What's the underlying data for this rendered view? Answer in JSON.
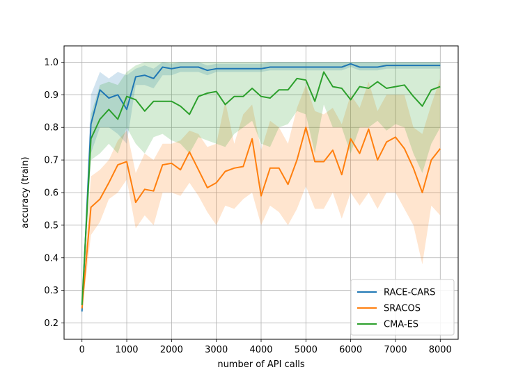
{
  "chart_data": {
    "type": "line",
    "title": "",
    "xlabel": "number of API calls",
    "ylabel": "accuracy (train)",
    "xlim": [
      -400,
      8400
    ],
    "ylim": [
      0.15,
      1.05
    ],
    "xticks": [
      0,
      1000,
      2000,
      3000,
      4000,
      5000,
      6000,
      7000,
      8000
    ],
    "yticks": [
      0.2,
      0.3,
      0.4,
      0.5,
      0.6,
      0.7,
      0.8,
      0.9,
      1.0
    ],
    "xtick_labels": [
      "0",
      "1000",
      "2000",
      "3000",
      "4000",
      "5000",
      "6000",
      "7000",
      "8000"
    ],
    "ytick_labels": [
      "0.2",
      "0.3",
      "0.4",
      "0.5",
      "0.6",
      "0.7",
      "0.8",
      "0.9",
      "1.0"
    ],
    "grid": true,
    "legend_position": "lower-right",
    "x": [
      0,
      200,
      400,
      600,
      800,
      1000,
      1200,
      1400,
      1600,
      1800,
      2000,
      2200,
      2400,
      2600,
      2800,
      3000,
      3200,
      3400,
      3600,
      3800,
      4000,
      4200,
      4400,
      4600,
      4800,
      5000,
      5200,
      5400,
      5600,
      5800,
      6000,
      6200,
      6400,
      6600,
      6800,
      7000,
      7200,
      7400,
      7600,
      7800,
      8000
    ],
    "series": [
      {
        "name": "RACE-CARS",
        "color": "#1f77b4",
        "values": [
          0.235,
          0.81,
          0.915,
          0.89,
          0.9,
          0.855,
          0.955,
          0.96,
          0.95,
          0.985,
          0.98,
          0.985,
          0.985,
          0.985,
          0.975,
          0.98,
          0.98,
          0.98,
          0.98,
          0.98,
          0.98,
          0.985,
          0.985,
          0.985,
          0.985,
          0.985,
          0.985,
          0.985,
          0.985,
          0.985,
          0.995,
          0.985,
          0.985,
          0.985,
          0.99,
          0.99,
          0.99,
          0.99,
          0.99,
          0.99,
          0.99
        ],
        "lower": [
          0.22,
          0.72,
          0.8,
          0.8,
          0.78,
          0.75,
          0.93,
          0.93,
          0.92,
          0.96,
          0.96,
          0.97,
          0.97,
          0.97,
          0.96,
          0.97,
          0.97,
          0.97,
          0.97,
          0.97,
          0.97,
          0.975,
          0.975,
          0.975,
          0.975,
          0.975,
          0.975,
          0.975,
          0.975,
          0.975,
          0.985,
          0.975,
          0.975,
          0.975,
          0.98,
          0.98,
          0.98,
          0.98,
          0.98,
          0.98,
          0.98
        ],
        "upper": [
          0.25,
          0.9,
          0.97,
          0.95,
          0.97,
          0.96,
          0.98,
          0.99,
          0.98,
          1.0,
          0.995,
          1.0,
          1.0,
          1.0,
          0.99,
          0.995,
          0.995,
          0.995,
          0.995,
          0.995,
          0.995,
          1.0,
          1.0,
          1.0,
          1.0,
          1.0,
          1.0,
          1.0,
          1.0,
          1.0,
          1.0,
          1.0,
          1.0,
          1.0,
          1.0,
          1.0,
          1.0,
          1.0,
          1.0,
          1.0,
          1.0
        ]
      },
      {
        "name": "SRACOS",
        "color": "#ff7f0e",
        "values": [
          0.245,
          0.555,
          0.58,
          0.63,
          0.685,
          0.695,
          0.57,
          0.61,
          0.605,
          0.685,
          0.69,
          0.67,
          0.725,
          0.67,
          0.615,
          0.63,
          0.665,
          0.675,
          0.68,
          0.765,
          0.59,
          0.675,
          0.675,
          0.625,
          0.7,
          0.8,
          0.695,
          0.695,
          0.73,
          0.655,
          0.765,
          0.72,
          0.795,
          0.7,
          0.755,
          0.77,
          0.735,
          0.675,
          0.6,
          0.7,
          0.735
        ],
        "lower": [
          0.23,
          0.47,
          0.51,
          0.58,
          0.6,
          0.64,
          0.49,
          0.53,
          0.5,
          0.6,
          0.6,
          0.59,
          0.63,
          0.59,
          0.54,
          0.5,
          0.56,
          0.55,
          0.58,
          0.6,
          0.5,
          0.56,
          0.54,
          0.5,
          0.55,
          0.62,
          0.55,
          0.55,
          0.6,
          0.52,
          0.6,
          0.56,
          0.6,
          0.55,
          0.6,
          0.6,
          0.55,
          0.5,
          0.38,
          0.56,
          0.53
        ],
        "upper": [
          0.26,
          0.65,
          0.67,
          0.7,
          0.76,
          0.79,
          0.66,
          0.72,
          0.7,
          0.75,
          0.75,
          0.76,
          0.79,
          0.78,
          0.74,
          0.75,
          0.88,
          0.75,
          0.84,
          0.87,
          0.73,
          0.82,
          0.8,
          0.75,
          0.86,
          0.93,
          0.85,
          0.84,
          0.86,
          0.81,
          0.9,
          0.86,
          0.94,
          0.85,
          0.9,
          0.9,
          0.9,
          0.8,
          0.78,
          0.87,
          0.95
        ]
      },
      {
        "name": "CMA-ES",
        "color": "#2ca02c",
        "values": [
          0.255,
          0.765,
          0.825,
          0.855,
          0.825,
          0.895,
          0.885,
          0.85,
          0.88,
          0.88,
          0.88,
          0.865,
          0.84,
          0.895,
          0.905,
          0.91,
          0.87,
          0.895,
          0.895,
          0.92,
          0.895,
          0.89,
          0.915,
          0.915,
          0.95,
          0.945,
          0.88,
          0.97,
          0.925,
          0.92,
          0.885,
          0.925,
          0.92,
          0.94,
          0.92,
          0.925,
          0.93,
          0.895,
          0.865,
          0.915,
          0.925
        ],
        "lower": [
          0.24,
          0.7,
          0.72,
          0.75,
          0.72,
          0.8,
          0.75,
          0.72,
          0.77,
          0.78,
          0.76,
          0.75,
          0.72,
          0.77,
          0.76,
          0.75,
          0.74,
          0.78,
          0.8,
          0.82,
          0.75,
          0.74,
          0.8,
          0.81,
          0.85,
          0.84,
          0.72,
          0.87,
          0.8,
          0.8,
          0.72,
          0.8,
          0.8,
          0.82,
          0.79,
          0.81,
          0.8,
          0.72,
          0.66,
          0.75,
          0.8
        ],
        "upper": [
          0.27,
          0.84,
          0.93,
          0.94,
          0.93,
          0.97,
          0.99,
          1.0,
          1.0,
          1.0,
          1.0,
          1.0,
          1.0,
          1.0,
          1.0,
          1.0,
          1.0,
          1.0,
          1.0,
          1.0,
          1.0,
          1.0,
          1.0,
          1.0,
          1.0,
          1.0,
          1.0,
          1.0,
          1.0,
          1.0,
          1.0,
          1.0,
          1.0,
          1.0,
          1.0,
          1.0,
          1.0,
          1.0,
          1.0,
          1.0,
          1.0
        ]
      }
    ]
  }
}
